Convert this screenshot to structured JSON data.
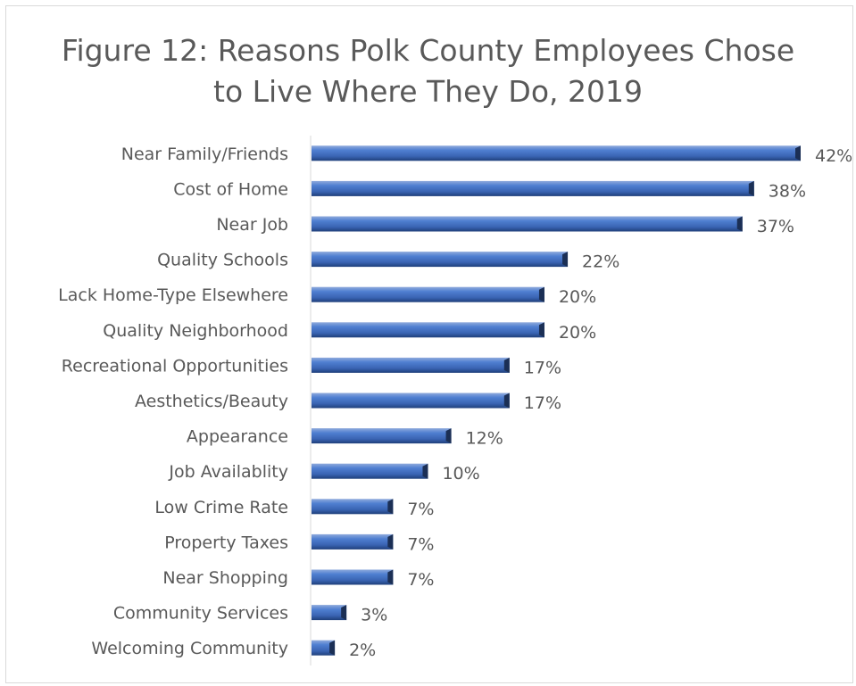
{
  "chart_data": {
    "type": "bar",
    "orientation": "horizontal",
    "title": "Figure 12: Reasons Polk County Employees Chose to Live Where They Do, 2019",
    "title_lines": [
      "Figure 12: Reasons Polk County Employees Chose",
      "to Live Where They Do, 2019"
    ],
    "categories": [
      "Near Family/Friends",
      "Cost of Home",
      "Near Job",
      "Quality Schools",
      "Lack Home-Type Elsewhere",
      "Quality Neighborhood",
      "Recreational Opportunities",
      "Aesthetics/Beauty",
      "Appearance",
      "Job Availablity",
      "Low Crime Rate",
      "Property Taxes",
      "Near Shopping",
      "Community Services",
      "Welcoming Community"
    ],
    "values": [
      42,
      38,
      37,
      22,
      20,
      20,
      17,
      17,
      12,
      10,
      7,
      7,
      7,
      3,
      2
    ],
    "value_labels": [
      "42%",
      "38%",
      "37%",
      "22%",
      "20%",
      "20%",
      "17%",
      "17%",
      "12%",
      "10%",
      "7%",
      "7%",
      "7%",
      "3%",
      "2%"
    ],
    "unit": "%",
    "xlim": [
      0,
      42
    ],
    "grid": false,
    "legend": "none",
    "bar_color": "#4472c4"
  }
}
